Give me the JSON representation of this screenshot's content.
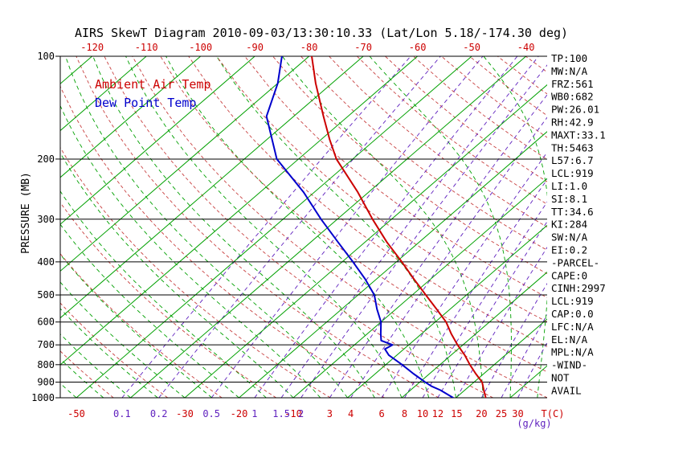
{
  "title": "AIRS SkewT Diagram 2010-09-03/13:30:10.33 (Lat/Lon 5.18/-174.30 deg)",
  "legend": {
    "air_temp": "Ambient Air Temp",
    "dew_point": "Dew Point Temp"
  },
  "axes": {
    "y_label": "PRESSURE (MB)",
    "x_unit_label": "T(C)",
    "mixing_unit_label": "(g/kg)",
    "pressure_ticks": [
      100,
      200,
      300,
      400,
      500,
      600,
      700,
      800,
      900,
      1000
    ],
    "top_temp_ticks": [
      -120,
      -110,
      -100,
      -90,
      -80,
      -70,
      -60,
      -50,
      -40
    ],
    "bottom_temp_ticks": [
      -50,
      -30,
      -20,
      -10
    ],
    "mixing_ratio_ticks_purple": [
      0.1,
      0.2,
      0.5,
      1,
      1.5,
      2
    ],
    "mixing_ratio_ticks_red": [
      3,
      4,
      6,
      8,
      10,
      12,
      15,
      20,
      25,
      30
    ]
  },
  "grid": {
    "isotherms_c": {
      "min": -160,
      "max": 40,
      "step": 10
    },
    "dry_adiabats_k": {
      "min": 220,
      "max": 460,
      "step": 10
    },
    "moist_adiabats_c": {
      "min": -60,
      "max": 40,
      "step": 5
    },
    "mixing_ratio_lines_gkg": [
      0.1,
      0.2,
      0.5,
      1,
      1.5,
      2,
      3,
      4,
      6,
      8,
      10,
      12,
      15,
      20,
      25,
      30
    ]
  },
  "colors": {
    "isotherm": "#00a000",
    "moist_adiabat": "#00a000",
    "dry_adiabat": "#c84040",
    "mixing_ratio": "#5e1fbe",
    "grid_black": "#000000",
    "temp_curve": "#cc0000",
    "dewpoint_curve": "#0000cc"
  },
  "stats": [
    "TP:100",
    "MW:N/A",
    "FRZ:561",
    "WB0:682",
    "PW:26.01",
    "RH:42.9",
    "MAXT:33.1",
    "TH:5463",
    "L57:6.7",
    "LCL:919",
    "LI:1.0",
    "SI:8.1",
    "TT:34.6",
    "KI:284",
    "SW:N/A",
    "EI:0.2",
    "-PARCEL-",
    "CAPE:0",
    "CINH:2997",
    "LCL:919",
    "CAP:0.0",
    "LFC:N/A",
    "EL:N/A",
    "MPL:N/A",
    "-WIND-",
    "NOT",
    "AVAIL"
  ],
  "chart_data": {
    "type": "line",
    "subtype": "skew-t-log-p",
    "title": "AIRS SkewT Diagram 2010-09-03/13:30:10.33 (Lat/Lon 5.18/-174.30 deg)",
    "xlabel": "T(C)",
    "ylabel": "PRESSURE (MB)",
    "y_scale": "log",
    "pressure_range_mb": [
      100,
      1000
    ],
    "top_temp_axis_range_c": [
      -120,
      -40
    ],
    "legend_position": "top-left",
    "series": [
      {
        "id": "air-temp-curve",
        "name": "Ambient Air Temp",
        "color": "#cc0000",
        "points_pressure_mb_temp_c": [
          [
            1000,
            25.5
          ],
          [
            950,
            23.5
          ],
          [
            900,
            21.5
          ],
          [
            850,
            18.5
          ],
          [
            800,
            15.5
          ],
          [
            750,
            12.5
          ],
          [
            700,
            9.0
          ],
          [
            650,
            5.5
          ],
          [
            600,
            2.0
          ],
          [
            550,
            -2.5
          ],
          [
            500,
            -7.5
          ],
          [
            450,
            -13.0
          ],
          [
            400,
            -19.0
          ],
          [
            350,
            -26.0
          ],
          [
            300,
            -33.5
          ],
          [
            250,
            -42.0
          ],
          [
            200,
            -53.0
          ],
          [
            175,
            -58.5
          ],
          [
            150,
            -64.5
          ],
          [
            120,
            -73.0
          ],
          [
            100,
            -79.5
          ]
        ]
      },
      {
        "id": "dew-point-curve",
        "name": "Dew Point Temp",
        "color": "#0000cc",
        "points_pressure_mb_temp_c": [
          [
            1000,
            19.5
          ],
          [
            950,
            15.5
          ],
          [
            925,
            13.0
          ],
          [
            900,
            11.0
          ],
          [
            850,
            7.0
          ],
          [
            800,
            3.0
          ],
          [
            750,
            -1.5
          ],
          [
            720,
            -3.5
          ],
          [
            700,
            -3.0
          ],
          [
            680,
            -6.0
          ],
          [
            650,
            -7.5
          ],
          [
            600,
            -10.0
          ],
          [
            550,
            -13.5
          ],
          [
            500,
            -17.0
          ],
          [
            450,
            -22.0
          ],
          [
            400,
            -28.0
          ],
          [
            350,
            -35.0
          ],
          [
            300,
            -43.0
          ],
          [
            250,
            -52.0
          ],
          [
            200,
            -64.0
          ],
          [
            150,
            -75.0
          ],
          [
            120,
            -80.0
          ],
          [
            100,
            -85.0
          ]
        ]
      }
    ]
  }
}
